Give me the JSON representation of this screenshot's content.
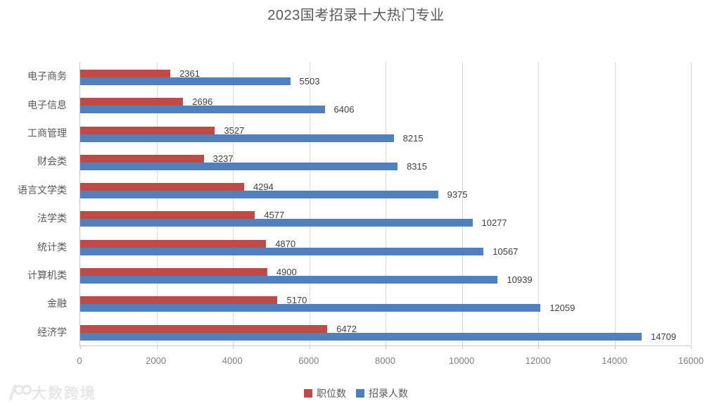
{
  "title": "2023国考招录十大热门专业",
  "colors": {
    "positions": "#be4b48",
    "recruits": "#5081bd",
    "gridline": "#d9d9d9",
    "axis_line": "#c9c9c9",
    "value_text": "#404040",
    "category_text": "#595959",
    "title_text": "#595959",
    "watermark": "#e7e7e7"
  },
  "chart_data": {
    "type": "bar",
    "orientation": "horizontal",
    "title": "2023国考招录十大热门专业",
    "categories": [
      "电子商务",
      "电子信息",
      "工商管理",
      "财会类",
      "语言文学类",
      "法学类",
      "统计类",
      "计算机类",
      "金融",
      "经济学"
    ],
    "series": [
      {
        "name": "职位数",
        "color_key": "positions",
        "values": [
          2361,
          2696,
          3527,
          3237,
          4294,
          4577,
          4870,
          4900,
          5170,
          6472
        ]
      },
      {
        "name": "招录人数",
        "color_key": "recruits",
        "values": [
          5503,
          6406,
          8215,
          8315,
          9375,
          10277,
          10567,
          10939,
          12059,
          14709
        ]
      }
    ],
    "x_ticks": [
      0,
      2000,
      4000,
      6000,
      8000,
      10000,
      12000,
      14000,
      16000
    ],
    "x_tick_labels": [
      "0",
      "2000",
      "4000",
      "6000",
      "8000",
      "10000",
      "12000",
      "14000",
      "16000"
    ],
    "xlim": [
      0,
      16000
    ],
    "grid": true,
    "data_labels": true,
    "legend_position": "bottom"
  },
  "watermark": {
    "brand": "大数跨境"
  }
}
